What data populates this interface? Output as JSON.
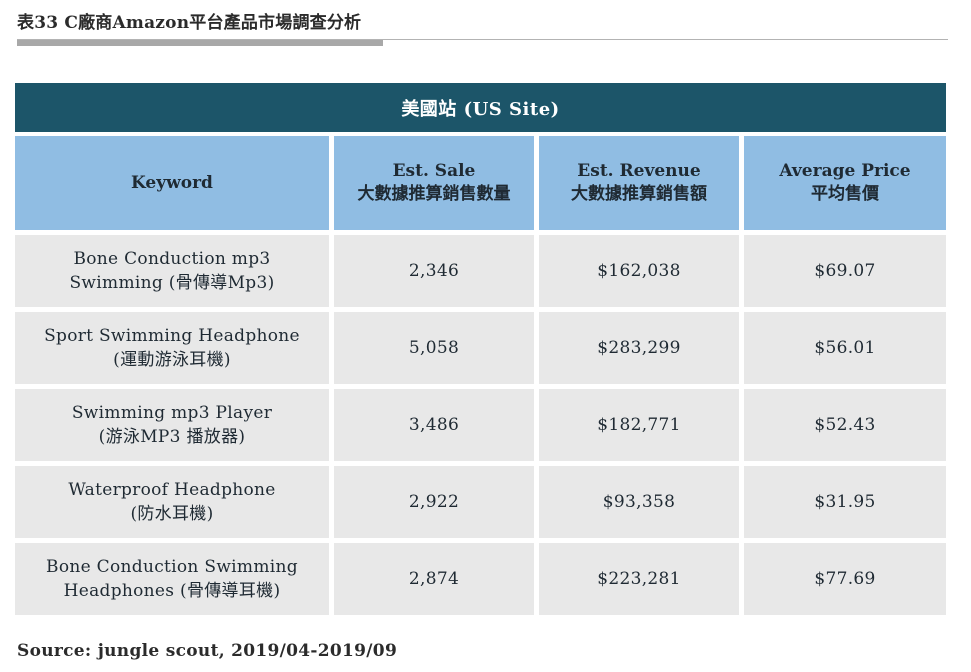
{
  "title": "表33 C廠商Amazon平台產品市場調查分析",
  "table": {
    "site_label": "美國站 (US Site)",
    "headers": [
      {
        "line1": "Keyword",
        "line2": ""
      },
      {
        "line1": "Est. Sale",
        "line2": "大數據推算銷售數量"
      },
      {
        "line1": "Est. Revenue",
        "line2": "大數據推算銷售額"
      },
      {
        "line1": "Average Price",
        "line2": "平均售價"
      }
    ],
    "rows": [
      {
        "keyword_en": "Bone Conduction mp3",
        "keyword_zh": "Swimming (骨傳導Mp3)",
        "sale": "2,346",
        "revenue": "$162,038",
        "price": "$69.07"
      },
      {
        "keyword_en": "Sport Swimming Headphone",
        "keyword_zh": "(運動游泳耳機)",
        "sale": "5,058",
        "revenue": "$283,299",
        "price": "$56.01"
      },
      {
        "keyword_en": "Swimming mp3 Player",
        "keyword_zh": "(游泳MP3 播放器)",
        "sale": "3,486",
        "revenue": "$182,771",
        "price": "$52.43"
      },
      {
        "keyword_en": "Waterproof Headphone",
        "keyword_zh": "(防水耳機)",
        "sale": "2,922",
        "revenue": "$93,358",
        "price": "$31.95"
      },
      {
        "keyword_en": "Bone Conduction Swimming",
        "keyword_zh": "Headphones (骨傳導耳機)",
        "sale": "2,874",
        "revenue": "$223,281",
        "price": "$77.69"
      }
    ]
  },
  "source": "Source: jungle scout, 2019/04-2019/09",
  "colors": {
    "band": "#1c5569",
    "header": "#90bde3",
    "cell": "#e8e8e8"
  }
}
